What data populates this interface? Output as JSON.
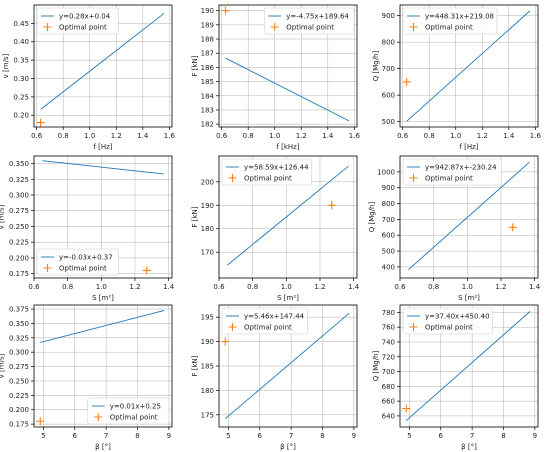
{
  "chart_data": [
    {
      "type": "line",
      "xlabel": "f [Hz]",
      "ylabel": "v [m/s]",
      "xlim": [
        0.58,
        1.62
      ],
      "ylim": [
        0.168,
        0.5
      ],
      "xticks": [
        "0.6",
        "0.8",
        "1.0",
        "1.2",
        "1.4",
        "1.6"
      ],
      "yticks": [
        "0.20",
        "0.25",
        "0.30",
        "0.35",
        "0.40",
        "0.45"
      ],
      "grid": true,
      "legend_position": "upper-left",
      "series": [
        {
          "name": "y=0.28x+0.04",
          "type": "line",
          "x": [
            0.63,
            1.56
          ],
          "y": [
            0.216,
            0.477
          ]
        },
        {
          "name": "Optimal point",
          "type": "marker",
          "x": [
            0.63
          ],
          "y": [
            0.18
          ]
        }
      ]
    },
    {
      "type": "line",
      "xlabel": "f [kHz]",
      "ylabel": "F [kN]",
      "xlim": [
        0.58,
        1.62
      ],
      "ylim": [
        181.8,
        190.4
      ],
      "xticks": [
        "0.6",
        "0.8",
        "1.0",
        "1.2",
        "1.4",
        "1.6"
      ],
      "yticks": [
        "182",
        "183",
        "184",
        "185",
        "186",
        "187",
        "188",
        "189",
        "190"
      ],
      "grid": true,
      "legend_position": "upper-right",
      "series": [
        {
          "name": "y=-4.75x+189.64",
          "type": "line",
          "x": [
            0.63,
            1.56
          ],
          "y": [
            186.65,
            182.23
          ]
        },
        {
          "name": "Optimal point",
          "type": "marker",
          "x": [
            0.63
          ],
          "y": [
            190.0
          ]
        }
      ]
    },
    {
      "type": "line",
      "xlabel": "f [Hz]",
      "ylabel": "Q [Mg/h]",
      "xlim": [
        0.58,
        1.62
      ],
      "ylim": [
        480,
        940
      ],
      "xticks": [
        "0.6",
        "0.8",
        "1.0",
        "1.2",
        "1.4",
        "1.6"
      ],
      "yticks": [
        "500",
        "600",
        "700",
        "800",
        "900"
      ],
      "grid": true,
      "legend_position": "upper-left",
      "series": [
        {
          "name": "y=448.31x+219.08",
          "type": "line",
          "x": [
            0.63,
            1.56
          ],
          "y": [
            501.5,
            918.4
          ]
        },
        {
          "name": "Optimal point",
          "type": "marker",
          "x": [
            0.63
          ],
          "y": [
            650
          ]
        }
      ]
    },
    {
      "type": "line",
      "xlabel": "S [m²]",
      "ylabel": "v [m/s]",
      "xlim": [
        0.6,
        1.42
      ],
      "ylim": [
        0.168,
        0.362
      ],
      "xticks": [
        "0.6",
        "0.8",
        "1.0",
        "1.2",
        "1.4"
      ],
      "yticks": [
        "0.175",
        "0.200",
        "0.225",
        "0.250",
        "0.275",
        "0.300",
        "0.325",
        "0.350"
      ],
      "grid": true,
      "legend_position": "lower-left",
      "series": [
        {
          "name": "y=-0.03x+0.37",
          "type": "line",
          "x": [
            0.65,
            1.37
          ],
          "y": [
            0.3546,
            0.3335
          ]
        },
        {
          "name": "Optimal point",
          "type": "marker",
          "x": [
            1.27
          ],
          "y": [
            0.18
          ]
        }
      ]
    },
    {
      "type": "line",
      "xlabel": "S [m²]",
      "ylabel": "F [kN]",
      "xlim": [
        0.6,
        1.42
      ],
      "ylim": [
        159,
        211
      ],
      "xticks": [
        "0.6",
        "0.8",
        "1.0",
        "1.2",
        "1.4"
      ],
      "yticks": [
        "170",
        "180",
        "190",
        "200"
      ],
      "grid": true,
      "legend_position": "upper-left",
      "series": [
        {
          "name": "y=58.59x+126.44",
          "type": "line",
          "x": [
            0.65,
            1.37
          ],
          "y": [
            164.5,
            206.7
          ]
        },
        {
          "name": "Optimal point",
          "type": "marker",
          "x": [
            1.27
          ],
          "y": [
            190.0
          ]
        }
      ]
    },
    {
      "type": "line",
      "xlabel": "S [m²]",
      "ylabel": "Q [Mg/h]",
      "xlim": [
        0.6,
        1.42
      ],
      "ylim": [
        330,
        1100
      ],
      "xticks": [
        "0.6",
        "0.8",
        "1.0",
        "1.2",
        "1.4"
      ],
      "yticks": [
        "400",
        "500",
        "600",
        "700",
        "800",
        "900",
        "1000"
      ],
      "grid": true,
      "legend_position": "upper-left",
      "series": [
        {
          "name": "y=942.87x+-230.24",
          "type": "line",
          "x": [
            0.65,
            1.37
          ],
          "y": [
            382.6,
            1061.5
          ]
        },
        {
          "name": "Optimal point",
          "type": "marker",
          "x": [
            1.27
          ],
          "y": [
            650
          ]
        }
      ]
    },
    {
      "type": "line",
      "xlabel": "β [°]",
      "ylabel": "v [m/s]",
      "xlim": [
        4.7,
        9.1
      ],
      "ylim": [
        0.17,
        0.382
      ],
      "xticks": [
        "5",
        "6",
        "7",
        "8",
        "9"
      ],
      "yticks": [
        "0.175",
        "0.200",
        "0.225",
        "0.250",
        "0.275",
        "0.300",
        "0.325",
        "0.350",
        "0.375"
      ],
      "grid": true,
      "legend_position": "lower-right",
      "series": [
        {
          "name": "y=0.01x+0.25",
          "type": "line",
          "x": [
            4.9,
            8.85
          ],
          "y": [
            0.317,
            0.3725
          ]
        },
        {
          "name": "Optimal point",
          "type": "marker",
          "x": [
            4.9
          ],
          "y": [
            0.18
          ]
        }
      ]
    },
    {
      "type": "line",
      "xlabel": "β [°]",
      "ylabel": "F [kN]",
      "xlim": [
        4.7,
        9.1
      ],
      "ylim": [
        172.5,
        197.5
      ],
      "xticks": [
        "5",
        "6",
        "7",
        "8",
        "9"
      ],
      "yticks": [
        "175",
        "180",
        "185",
        "190",
        "195"
      ],
      "grid": true,
      "legend_position": "upper-left",
      "series": [
        {
          "name": "y=5.46x+147.44",
          "type": "line",
          "x": [
            4.9,
            8.85
          ],
          "y": [
            174.2,
            195.8
          ]
        },
        {
          "name": "Optimal point",
          "type": "marker",
          "x": [
            4.9
          ],
          "y": [
            190.0
          ]
        }
      ]
    },
    {
      "type": "line",
      "xlabel": "β [°]",
      "ylabel": "Q [Mg/h]",
      "xlim": [
        4.7,
        9.1
      ],
      "ylim": [
        625,
        790
      ],
      "xticks": [
        "5",
        "6",
        "7",
        "8",
        "9"
      ],
      "yticks": [
        "640",
        "660",
        "680",
        "700",
        "720",
        "740",
        "760",
        "780"
      ],
      "grid": true,
      "legend_position": "upper-left",
      "series": [
        {
          "name": "y=37.40x+450.40",
          "type": "line",
          "x": [
            4.9,
            8.85
          ],
          "y": [
            633.7,
            781.4
          ]
        },
        {
          "name": "Optimal point",
          "type": "marker",
          "x": [
            4.9
          ],
          "y": [
            650
          ]
        }
      ]
    }
  ],
  "colors": {
    "line": "#1f77b4",
    "marker": "#ff7f0e",
    "grid": "#b0b0b0",
    "axis": "#000000"
  }
}
